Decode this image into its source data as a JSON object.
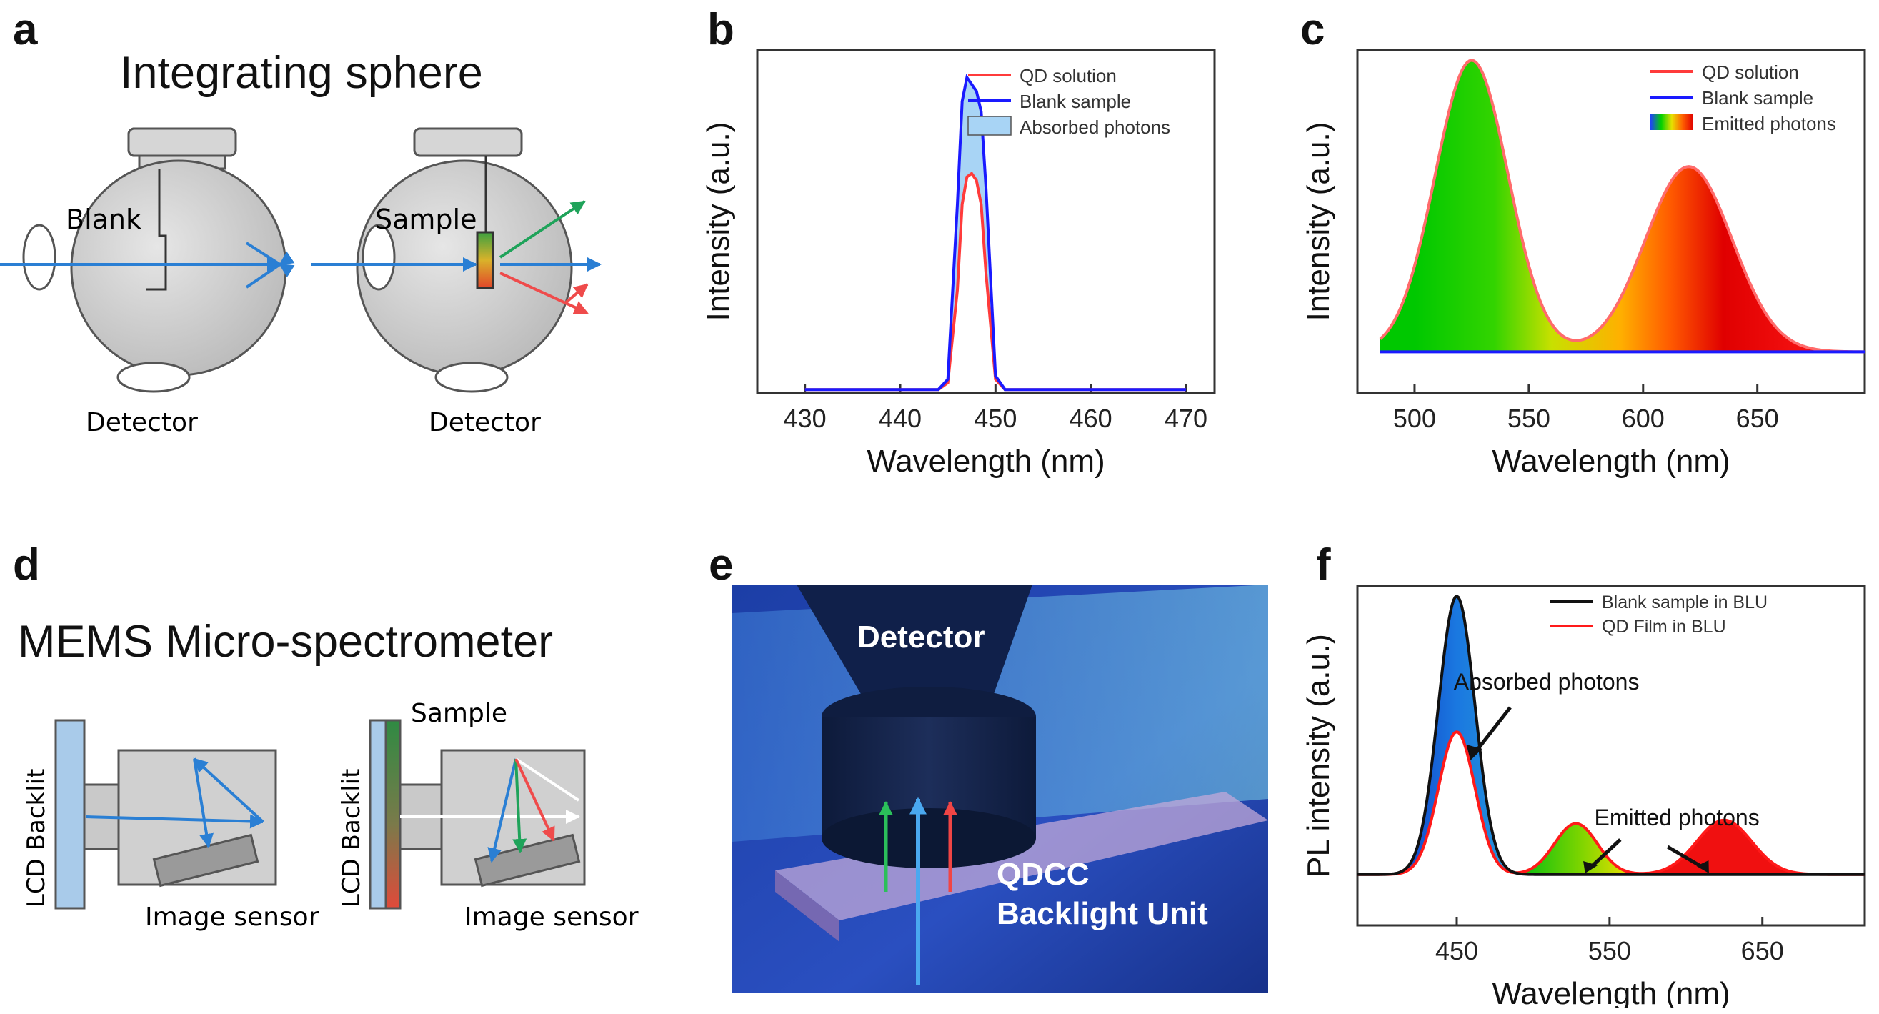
{
  "panels": {
    "a": {
      "label": "a",
      "title": "Integrating sphere",
      "left_sphere": {
        "label": "Blank",
        "detector": "Detector"
      },
      "right_sphere": {
        "label": "Sample",
        "detector": "Detector"
      }
    },
    "b": {
      "label": "b"
    },
    "c": {
      "label": "c"
    },
    "d": {
      "label": "d",
      "title": "MEMS Micro-spectrometer",
      "left": {
        "backlight": "LCD Backlit",
        "sensor": "Image sensor"
      },
      "right": {
        "backlight": "LCD Backlit",
        "sensor": "Image sensor",
        "sample": "Sample"
      }
    },
    "e": {
      "label": "e",
      "detector": "Detector",
      "unit_line1": "QDCC",
      "unit_line2": "Backlight Unit"
    },
    "f": {
      "label": "f",
      "annotation_absorbed": "Absorbed photons",
      "annotation_emitted": "Emitted photons"
    }
  },
  "colors": {
    "qd_red": "#ff3b3b",
    "blank_blue": "#1a1aff",
    "absorbed_fill": "#a8d4f5",
    "arrow_blue": "#2a7fd4",
    "arrow_green": "#1fa35a",
    "arrow_red": "#ef4b4b",
    "photo_bg": "#1f3fa8"
  },
  "chart_data": [
    {
      "id": "b",
      "type": "line",
      "xlabel": "Wavelength (nm)",
      "ylabel": "Intensity (a.u.)",
      "xlim": [
        425,
        473
      ],
      "ylim": [
        0,
        1
      ],
      "xticks": [
        430,
        440,
        450,
        460,
        470
      ],
      "legend": [
        "QD solution",
        "Blank sample",
        "Absorbed photons"
      ],
      "legend_position": "top-right",
      "series": [
        {
          "name": "Blank sample",
          "x": [
            430,
            444,
            445,
            446,
            446.5,
            447,
            447.5,
            448,
            448.5,
            449,
            450,
            451,
            470
          ],
          "y": [
            0.01,
            0.01,
            0.04,
            0.55,
            0.85,
            0.92,
            0.9,
            0.88,
            0.82,
            0.6,
            0.05,
            0.01,
            0.01
          ]
        },
        {
          "name": "QD solution",
          "x": [
            430,
            444,
            445,
            446,
            446.5,
            447,
            447.5,
            448,
            448.5,
            449,
            450,
            451,
            470
          ],
          "y": [
            0.01,
            0.01,
            0.03,
            0.3,
            0.55,
            0.63,
            0.64,
            0.62,
            0.55,
            0.35,
            0.04,
            0.01,
            0.01
          ]
        }
      ]
    },
    {
      "id": "c",
      "type": "area",
      "xlabel": "Wavelength (nm)",
      "ylabel": "Intensity (a.u.)",
      "xlim": [
        475,
        697
      ],
      "ylim": [
        0,
        1
      ],
      "xticks": [
        500,
        550,
        600,
        650
      ],
      "legend": [
        "QD solution",
        "Blank sample",
        "Emitted photons"
      ],
      "legend_position": "top-right",
      "series": [
        {
          "name": "QD solution",
          "peaks": [
            {
              "center": 525,
              "height": 0.97,
              "width": 16
            },
            {
              "center": 620,
              "height": 0.66,
              "width": 19
            }
          ],
          "baseline": 0.12
        },
        {
          "name": "Blank sample",
          "baseline": 0.12
        }
      ]
    },
    {
      "id": "f",
      "type": "area",
      "xlabel": "Wavelength (nm)",
      "ylabel": "PL intensity (a.u.)",
      "xlim": [
        385,
        717
      ],
      "ylim": [
        0,
        1
      ],
      "xticks": [
        450,
        550,
        650
      ],
      "legend": [
        "Blank sample in BLU",
        "QD Film in BLU"
      ],
      "legend_position": "top-right",
      "series": [
        {
          "name": "Blank sample in BLU",
          "peaks": [
            {
              "center": 450,
              "height": 0.97,
              "width": 12
            }
          ],
          "baseline": 0.15
        },
        {
          "name": "QD Film in BLU",
          "peaks": [
            {
              "center": 450,
              "height": 0.57,
              "width": 12
            },
            {
              "center": 528,
              "height": 0.3,
              "width": 14
            },
            {
              "center": 625,
              "height": 0.31,
              "width": 18
            }
          ],
          "baseline": 0.15
        }
      ]
    }
  ]
}
